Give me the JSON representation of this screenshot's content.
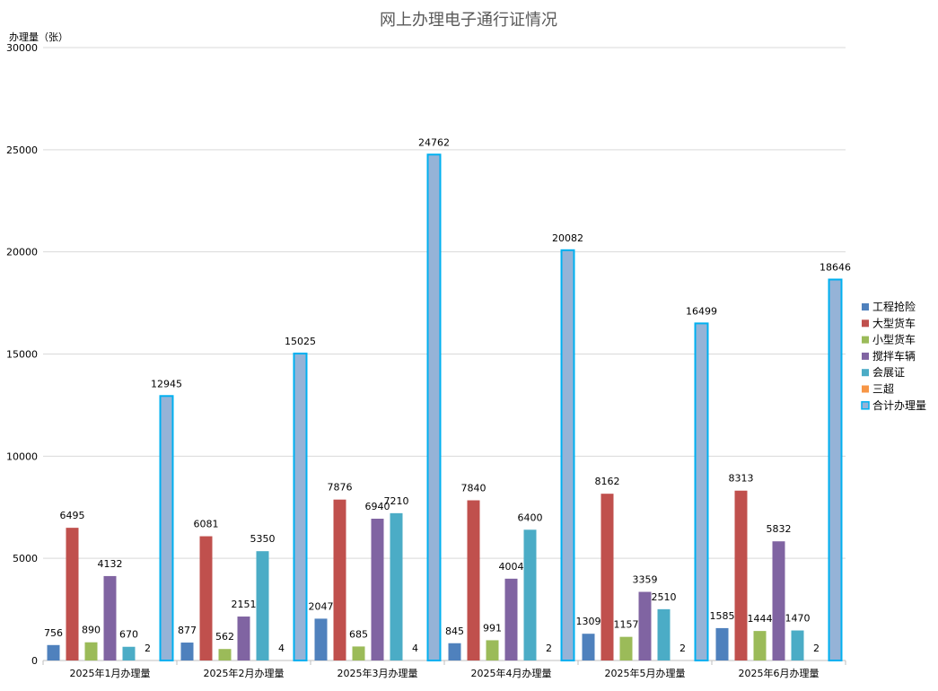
{
  "chart_data": {
    "type": "bar",
    "title": "网上办理电子通行证情况",
    "ylabel": "办理量（张）",
    "xlabel": "",
    "ylim": [
      0,
      30000
    ],
    "yticks": [
      0,
      5000,
      10000,
      15000,
      20000,
      25000,
      30000
    ],
    "grid": true,
    "legend_position": "right",
    "categories": [
      "2025年1月办理量",
      "2025年2月办理量",
      "2025年3月办理量",
      "2025年4月办理量",
      "2025年5月办理量",
      "2025年6月办理量"
    ],
    "series": [
      {
        "name": "工程抢险",
        "color": "#4F81BD",
        "values": [
          756,
          877,
          2047,
          845,
          1309,
          1585
        ],
        "labels": [
          "756",
          "877",
          "2047",
          "845",
          "1309",
          "1585"
        ]
      },
      {
        "name": "大型货车",
        "color": "#C0504D",
        "values": [
          6495,
          6081,
          7876,
          7840,
          8162,
          8313
        ],
        "labels": [
          "6495",
          "6081",
          "7876",
          "7840",
          "8162",
          "8313"
        ]
      },
      {
        "name": "小型货车",
        "color": "#9BBB59",
        "values": [
          890,
          562,
          685,
          991,
          1157,
          1444
        ],
        "labels": [
          "890",
          "562",
          "685",
          "991",
          "1157",
          "1444"
        ]
      },
      {
        "name": "搅拌车辆",
        "color": "#8064A2",
        "values": [
          4132,
          2151,
          6940,
          4004,
          3359,
          5832
        ],
        "labels": [
          "4132",
          "2151",
          "6940",
          "4004",
          "3359",
          "5832"
        ]
      },
      {
        "name": "会展证",
        "color": "#4BACC6",
        "values": [
          670,
          5350,
          7210,
          6400,
          2510,
          1470
        ],
        "labels": [
          "670",
          "5350",
          "7210",
          "6400",
          "2510",
          "1470"
        ]
      },
      {
        "name": "三超",
        "color": "#F79646",
        "values": [
          2,
          4,
          4,
          2,
          2,
          2
        ],
        "labels": [
          "2",
          "4",
          "4",
          "2",
          "2",
          "2"
        ]
      },
      {
        "name": "合计办理量",
        "color": "#95B3D7",
        "border": "#00B0F0",
        "values": [
          12945,
          15025,
          24762,
          20082,
          16499,
          18646
        ],
        "labels": [
          "12945",
          "15025",
          "24762",
          "20082",
          "16499",
          "18646"
        ]
      }
    ]
  }
}
